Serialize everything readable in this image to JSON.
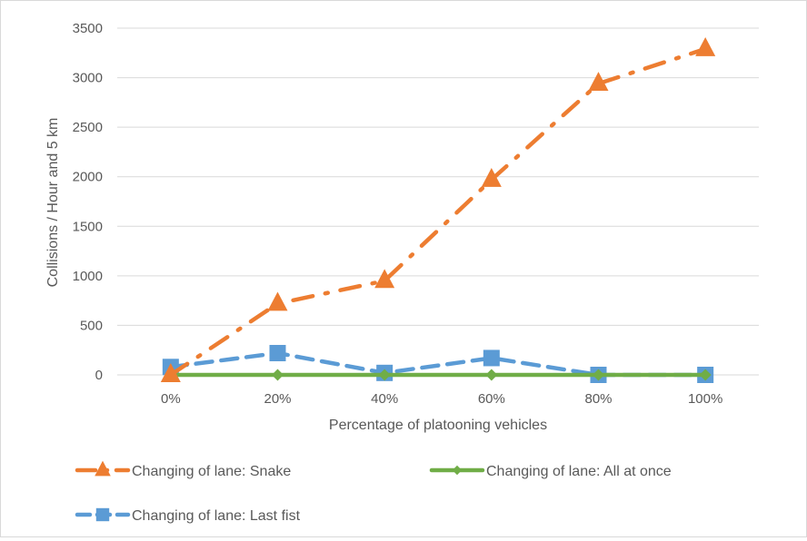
{
  "chart_data": {
    "type": "line",
    "categories": [
      "0%",
      "20%",
      "40%",
      "60%",
      "80%",
      "100%"
    ],
    "xlabel": "Percentage of platooning vehicles",
    "ylabel": "Collisions / Hour and 5 km",
    "ylim": [
      0,
      3500
    ],
    "yticks": [
      0,
      500,
      1000,
      1500,
      2000,
      2500,
      3000,
      3500
    ],
    "grid": true,
    "legend_position": "bottom",
    "series": [
      {
        "name": "Changing of lane: Snake",
        "values": [
          0,
          720,
          950,
          1970,
          2940,
          3290
        ],
        "color": "#ED7D31",
        "marker": "triangle",
        "dash": "dash-dot"
      },
      {
        "name": "Changing of lane: All at once",
        "values": [
          0,
          0,
          0,
          0,
          0,
          0
        ],
        "color": "#70AD47",
        "marker": "diamond",
        "dash": "solid"
      },
      {
        "name": "Changing of lane: Last fist",
        "values": [
          80,
          220,
          20,
          170,
          0,
          0
        ],
        "color": "#5B9BD5",
        "marker": "square",
        "dash": "dash"
      }
    ]
  }
}
